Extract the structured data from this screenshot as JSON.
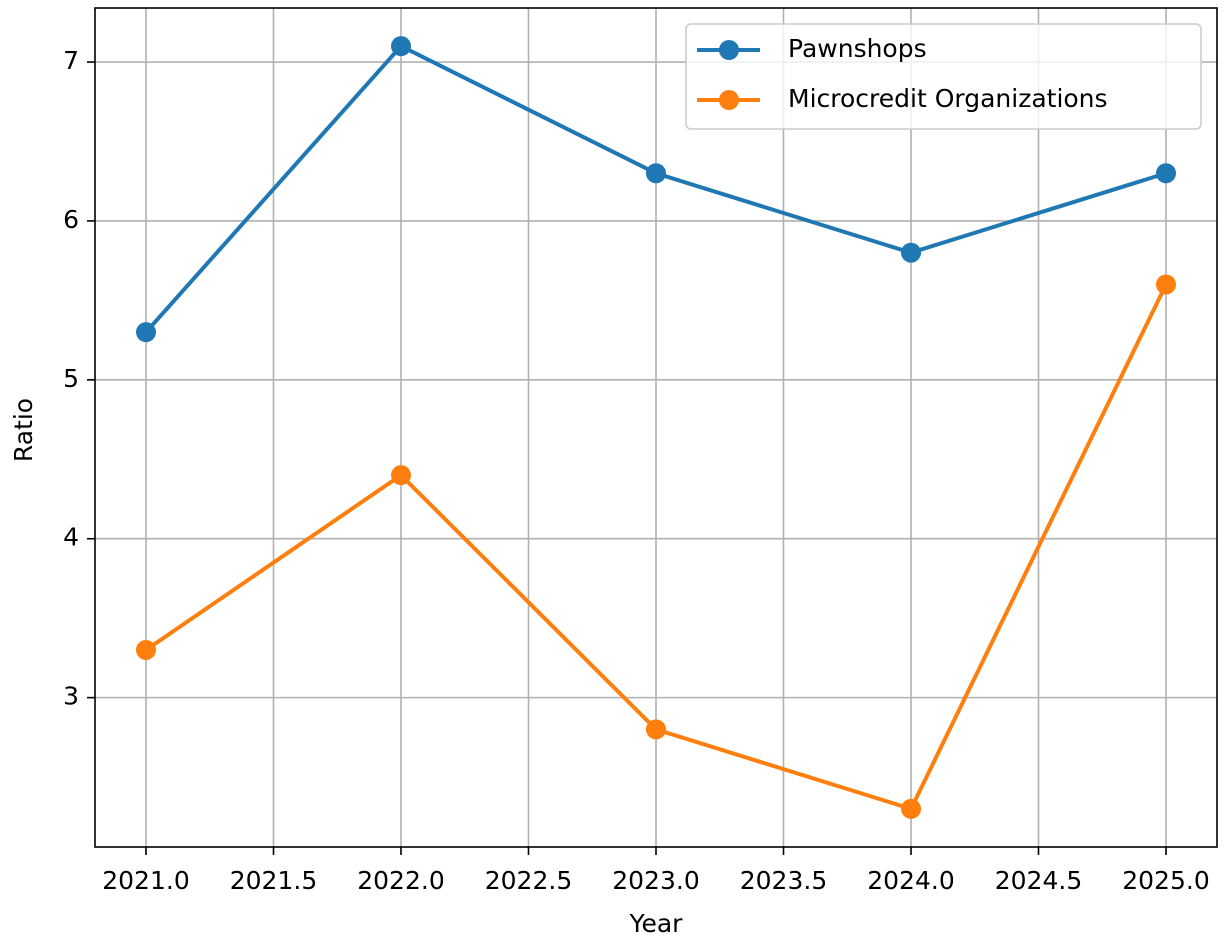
{
  "chart_data": {
    "type": "line",
    "x": [
      2021,
      2022,
      2023,
      2024,
      2025
    ],
    "series": [
      {
        "name": "Pawnshops",
        "color": "#1f77b4",
        "values": [
          5.3,
          7.1,
          6.3,
          5.8,
          6.3
        ]
      },
      {
        "name": "Microcredit Organizations",
        "color": "#ff7f0e",
        "values": [
          3.3,
          4.4,
          2.8,
          2.3,
          5.6
        ]
      }
    ],
    "x_label": "Year",
    "y_label": "Ratio",
    "xlim": [
      2020.8,
      2025.2
    ],
    "xticks": [
      {
        "value": 2021,
        "label": "2021.0"
      },
      {
        "value": 2021.5,
        "label": "2021.5"
      },
      {
        "value": 2022,
        "label": "2022.0"
      },
      {
        "value": 2022.5,
        "label": "2022.5"
      },
      {
        "value": 2023,
        "label": "2023.0"
      },
      {
        "value": 2023.5,
        "label": "2023.5"
      },
      {
        "value": 2024,
        "label": "2024.0"
      },
      {
        "value": 2024.5,
        "label": "2024.5"
      },
      {
        "value": 2025,
        "label": "2025.0"
      }
    ],
    "ylim": [
      2.06,
      7.34
    ],
    "yticks": [
      3,
      4,
      5,
      6,
      7
    ],
    "grid": true,
    "legend": "upper right"
  }
}
